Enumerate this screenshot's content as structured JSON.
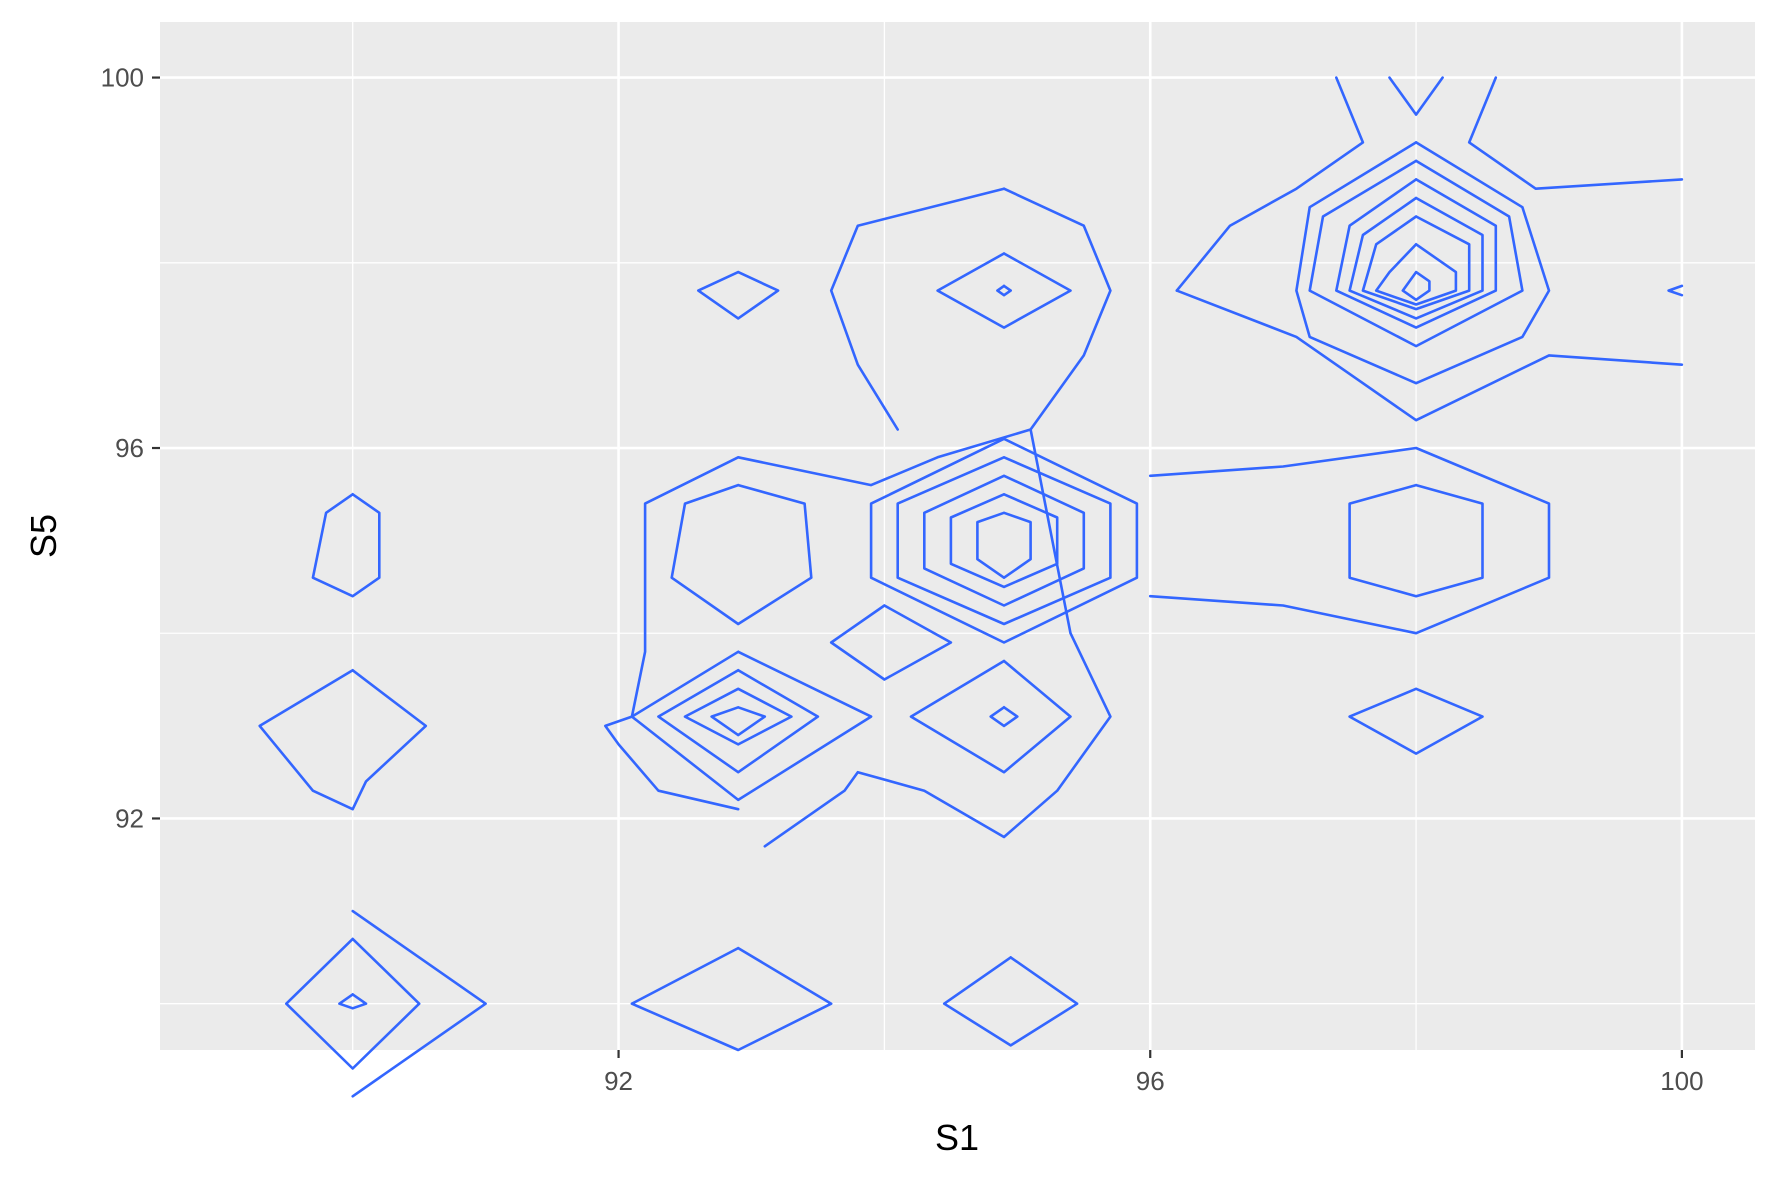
{
  "chart_data": {
    "type": "contour",
    "title": "",
    "xlabel": "S1",
    "ylabel": "S5",
    "xlim": [
      88.55,
      100.55
    ],
    "ylim": [
      89.5,
      100.6
    ],
    "x_ticks": [
      92,
      96,
      100
    ],
    "y_ticks": [
      92,
      96,
      100
    ],
    "grid": true,
    "colors": {
      "panel": "#ebebeb",
      "grid": "#ffffff",
      "line": "#3366ff",
      "tick": "#333333"
    },
    "contours": [
      [
        [
          90,
          91
        ],
        [
          91,
          90
        ],
        [
          90,
          89
        ]
      ],
      [
        [
          90,
          90.7
        ],
        [
          90.5,
          90
        ],
        [
          90,
          89.3
        ],
        [
          89.5,
          90
        ],
        [
          90,
          90.7
        ]
      ],
      [
        [
          90,
          90.1
        ],
        [
          90.1,
          90
        ],
        [
          90,
          89.95
        ],
        [
          89.9,
          90
        ],
        [
          90,
          90.1
        ]
      ],
      [
        [
          92.9,
          90.6
        ],
        [
          93.6,
          90
        ],
        [
          92.9,
          89.5
        ],
        [
          92.1,
          90
        ],
        [
          92.9,
          90.6
        ]
      ],
      [
        [
          94.95,
          90.5
        ],
        [
          95.45,
          90
        ],
        [
          94.95,
          89.55
        ],
        [
          94.45,
          90
        ],
        [
          94.95,
          90.5
        ]
      ],
      [
        [
          90,
          93.6
        ],
        [
          90.55,
          93
        ],
        [
          90.1,
          92.4
        ],
        [
          90,
          92.1
        ],
        [
          89.7,
          92.3
        ],
        [
          89.3,
          93
        ],
        [
          90,
          93.6
        ]
      ],
      [
        [
          90,
          95.5
        ],
        [
          90.2,
          95.3
        ],
        [
          90.2,
          94.6
        ],
        [
          90,
          94.4
        ],
        [
          89.7,
          94.6
        ],
        [
          89.8,
          95.3
        ],
        [
          90,
          95.5
        ]
      ],
      [
        [
          92.9,
          92.1
        ],
        [
          92.3,
          92.3
        ],
        [
          92,
          92.8
        ],
        [
          91.9,
          93
        ],
        [
          92.1,
          93.1
        ],
        [
          92.2,
          93.8
        ],
        [
          92.2,
          94.4
        ],
        [
          92.2,
          95.4
        ],
        [
          92.9,
          95.9
        ],
        [
          93.9,
          95.6
        ],
        [
          94.4,
          95.9
        ],
        [
          95.1,
          96.2
        ]
      ],
      [
        [
          92.9,
          93.8
        ],
        [
          93.9,
          93.1
        ],
        [
          92.9,
          92.2
        ],
        [
          92.1,
          93.1
        ],
        [
          92.9,
          93.8
        ]
      ],
      [
        [
          92.9,
          93.6
        ],
        [
          93.5,
          93.1
        ],
        [
          92.9,
          92.5
        ],
        [
          92.3,
          93.1
        ],
        [
          92.9,
          93.6
        ]
      ],
      [
        [
          92.9,
          93.4
        ],
        [
          93.3,
          93.1
        ],
        [
          92.9,
          92.8
        ],
        [
          92.5,
          93.1
        ],
        [
          92.9,
          93.4
        ]
      ],
      [
        [
          92.9,
          93.2
        ],
        [
          93.1,
          93.1
        ],
        [
          92.9,
          92.9
        ],
        [
          92.7,
          93.1
        ],
        [
          92.9,
          93.2
        ]
      ],
      [
        [
          92.9,
          95.6
        ],
        [
          93.4,
          95.4
        ],
        [
          93.45,
          94.6
        ],
        [
          92.9,
          94.1
        ],
        [
          92.4,
          94.6
        ],
        [
          92.5,
          95.4
        ],
        [
          92.9,
          95.6
        ]
      ],
      [
        [
          92.9,
          97.9
        ],
        [
          93.2,
          97.7
        ],
        [
          92.9,
          97.4
        ],
        [
          92.6,
          97.7
        ],
        [
          92.9,
          97.9
        ]
      ],
      [
        [
          94,
          94.3
        ],
        [
          94.5,
          93.9
        ],
        [
          94,
          93.5
        ],
        [
          93.6,
          93.9
        ],
        [
          94,
          94.3
        ]
      ],
      [
        [
          94.9,
          96.1
        ],
        [
          95.9,
          95.4
        ],
        [
          95.9,
          94.6
        ],
        [
          94.9,
          93.9
        ],
        [
          93.9,
          94.6
        ],
        [
          93.9,
          95.4
        ],
        [
          94.9,
          96.1
        ]
      ],
      [
        [
          94.9,
          95.9
        ],
        [
          95.7,
          95.4
        ],
        [
          95.7,
          94.6
        ],
        [
          94.9,
          94.1
        ],
        [
          94.1,
          94.6
        ],
        [
          94.1,
          95.4
        ],
        [
          94.9,
          95.9
        ]
      ],
      [
        [
          94.9,
          95.7
        ],
        [
          95.5,
          95.3
        ],
        [
          95.5,
          94.7
        ],
        [
          94.9,
          94.3
        ],
        [
          94.3,
          94.7
        ],
        [
          94.3,
          95.3
        ],
        [
          94.9,
          95.7
        ]
      ],
      [
        [
          94.9,
          95.5
        ],
        [
          95.3,
          95.25
        ],
        [
          95.3,
          94.75
        ],
        [
          94.9,
          94.5
        ],
        [
          94.5,
          94.75
        ],
        [
          94.5,
          95.25
        ],
        [
          94.9,
          95.5
        ]
      ],
      [
        [
          94.9,
          95.3
        ],
        [
          95.1,
          95.2
        ],
        [
          95.1,
          94.8
        ],
        [
          94.9,
          94.6
        ],
        [
          94.7,
          94.8
        ],
        [
          94.7,
          95.2
        ],
        [
          94.9,
          95.3
        ]
      ],
      [
        [
          94.9,
          93.7
        ],
        [
          95.4,
          93.1
        ],
        [
          94.9,
          92.5
        ],
        [
          94.2,
          93.1
        ],
        [
          94.9,
          93.7
        ]
      ],
      [
        [
          94.9,
          93.2
        ],
        [
          95.0,
          93.1
        ],
        [
          94.9,
          93.0
        ],
        [
          94.8,
          93.1
        ],
        [
          94.9,
          93.2
        ]
      ],
      [
        [
          94.9,
          98.1
        ],
        [
          95.4,
          97.7
        ],
        [
          94.9,
          97.3
        ],
        [
          94.4,
          97.7
        ],
        [
          94.9,
          98.1
        ]
      ],
      [
        [
          94.9,
          97.75
        ],
        [
          94.95,
          97.7
        ],
        [
          94.9,
          97.65
        ],
        [
          94.85,
          97.7
        ],
        [
          94.9,
          97.75
        ]
      ],
      [
        [
          94.9,
          98.8
        ],
        [
          95.5,
          98.4
        ],
        [
          95.7,
          97.7
        ],
        [
          95.5,
          97
        ],
        [
          95.1,
          96.2
        ],
        [
          95.4,
          94
        ],
        [
          95.7,
          93.1
        ],
        [
          95.3,
          92.3
        ],
        [
          94.9,
          91.8
        ],
        [
          94.3,
          92.3
        ],
        [
          93.8,
          92.5
        ],
        [
          93.7,
          92.3
        ],
        [
          93.1,
          91.7
        ]
      ],
      [
        [
          94.1,
          96.2
        ],
        [
          93.8,
          96.9
        ],
        [
          93.6,
          97.7
        ],
        [
          93.8,
          98.4
        ],
        [
          94.9,
          98.8
        ]
      ],
      [
        [
          96,
          95.7
        ],
        [
          97,
          95.8
        ],
        [
          98,
          96
        ],
        [
          99,
          95.4
        ],
        [
          99,
          94.6
        ],
        [
          98,
          94
        ],
        [
          97,
          94.3
        ],
        [
          96,
          94.4
        ]
      ],
      [
        [
          98,
          95.6
        ],
        [
          98.5,
          95.4
        ],
        [
          98.5,
          94.6
        ],
        [
          98,
          94.4
        ],
        [
          97.5,
          94.6
        ],
        [
          97.5,
          95.4
        ],
        [
          98,
          95.6
        ]
      ],
      [
        [
          98,
          93.4
        ],
        [
          98.5,
          93.1
        ],
        [
          98,
          92.7
        ],
        [
          97.5,
          93.1
        ],
        [
          98,
          93.4
        ]
      ],
      [
        [
          98,
          99.3
        ],
        [
          98.8,
          98.6
        ],
        [
          99,
          97.7
        ],
        [
          98.8,
          97.2
        ],
        [
          98,
          96.7
        ],
        [
          97.2,
          97.2
        ],
        [
          97.1,
          97.7
        ],
        [
          97.2,
          98.6
        ],
        [
          98,
          99.3
        ]
      ],
      [
        [
          98,
          99.1
        ],
        [
          98.7,
          98.5
        ],
        [
          98.8,
          97.7
        ],
        [
          98,
          97.1
        ],
        [
          97.2,
          97.7
        ],
        [
          97.3,
          98.5
        ],
        [
          98,
          99.1
        ]
      ],
      [
        [
          98,
          98.9
        ],
        [
          98.6,
          98.4
        ],
        [
          98.6,
          97.7
        ],
        [
          98,
          97.3
        ],
        [
          97.4,
          97.7
        ],
        [
          97.5,
          98.4
        ],
        [
          98,
          98.9
        ]
      ],
      [
        [
          98,
          98.7
        ],
        [
          98.5,
          98.3
        ],
        [
          98.5,
          97.7
        ],
        [
          98,
          97.4
        ],
        [
          97.5,
          97.7
        ],
        [
          97.6,
          98.3
        ],
        [
          98,
          98.7
        ]
      ],
      [
        [
          98,
          98.5
        ],
        [
          98.4,
          98.2
        ],
        [
          98.4,
          97.7
        ],
        [
          98,
          97.5
        ],
        [
          97.6,
          97.7
        ],
        [
          97.7,
          98.2
        ],
        [
          98,
          98.5
        ]
      ],
      [
        [
          98,
          98.2
        ],
        [
          98.3,
          97.9
        ],
        [
          98.3,
          97.7
        ],
        [
          98,
          97.55
        ],
        [
          97.7,
          97.7
        ],
        [
          97.8,
          97.9
        ],
        [
          98,
          98.2
        ]
      ],
      [
        [
          98,
          97.9
        ],
        [
          98.1,
          97.8
        ],
        [
          98.1,
          97.7
        ],
        [
          98,
          97.6
        ],
        [
          97.9,
          97.7
        ],
        [
          98,
          97.9
        ]
      ],
      [
        [
          97.8,
          100
        ],
        [
          98,
          99.6
        ],
        [
          98.2,
          100
        ]
      ],
      [
        [
          96.2,
          97.7
        ],
        [
          96.6,
          98.4
        ],
        [
          97.1,
          98.8
        ],
        [
          97.6,
          99.3
        ],
        [
          97.4,
          100
        ]
      ],
      [
        [
          98.6,
          100
        ],
        [
          98.4,
          99.3
        ],
        [
          98.9,
          98.8
        ],
        [
          100,
          98.9
        ]
      ],
      [
        [
          96.2,
          97.7
        ],
        [
          97.1,
          97.2
        ],
        [
          98,
          96.3
        ],
        [
          99,
          97
        ],
        [
          100,
          96.9
        ]
      ],
      [
        [
          100,
          97.75
        ],
        [
          99.9,
          97.7
        ],
        [
          100,
          97.65
        ]
      ]
    ]
  }
}
